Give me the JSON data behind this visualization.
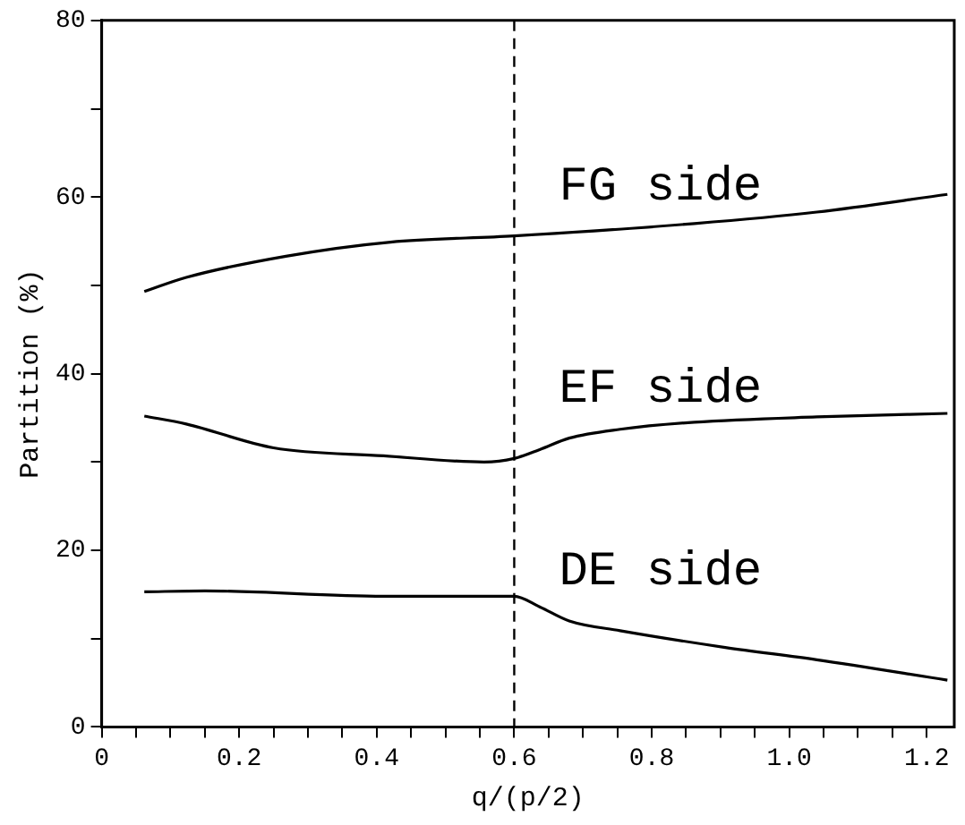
{
  "chart_data": {
    "type": "line",
    "xlabel": "q/(p/2)",
    "ylabel": "Partition (%)",
    "xlim": [
      0,
      1.24
    ],
    "ylim": [
      0,
      80
    ],
    "xticks": [
      0,
      {
        "value": 0.05,
        "label": null
      },
      {
        "value": 0.1,
        "label": null
      },
      {
        "value": 0.15,
        "label": null
      },
      0.2,
      {
        "value": 0.25,
        "label": null
      },
      {
        "value": 0.3,
        "label": null
      },
      {
        "value": 0.35,
        "label": null
      },
      0.4,
      {
        "value": 0.45,
        "label": null
      },
      {
        "value": 0.5,
        "label": null
      },
      {
        "value": 0.55,
        "label": null
      },
      0.6,
      {
        "value": 0.65,
        "label": null
      },
      {
        "value": 0.7,
        "label": null
      },
      {
        "value": 0.75,
        "label": null
      },
      0.8,
      {
        "value": 0.85,
        "label": null
      },
      {
        "value": 0.9,
        "label": null
      },
      {
        "value": 0.95,
        "label": null
      },
      {
        "value": 1,
        "label": "1.0"
      },
      {
        "value": 1.05,
        "label": null
      },
      {
        "value": 1.1,
        "label": null
      },
      {
        "value": 1.15,
        "label": null
      },
      1.2
    ],
    "yticks": [
      0,
      {
        "value": 10,
        "label": null
      },
      20,
      {
        "value": 30,
        "label": null
      },
      40,
      {
        "value": 50,
        "label": null
      },
      60,
      {
        "value": 70,
        "label": null
      },
      80
    ],
    "grid": false,
    "legend": false,
    "marker": "none",
    "line_style": "solid",
    "ref_lines": [
      {
        "axis": "x",
        "value": 0.6,
        "line_style": "dashed",
        "color": "#000000"
      }
    ],
    "series": [
      {
        "name": "FG side",
        "color": "#000000",
        "x": [
          0.062,
          0.123,
          0.268,
          0.42,
          0.6,
          0.862,
          1.04,
          1.23
        ],
        "values": [
          49.3,
          50.9,
          53.3,
          54.9,
          55.6,
          57.0,
          58.3,
          60.3
        ]
      },
      {
        "name": "EF side",
        "color": "#000000",
        "x": [
          0.062,
          0.123,
          0.25,
          0.41,
          0.556,
          0.6,
          0.637,
          0.68,
          0.754,
          0.862,
          1.04,
          1.23
        ],
        "values": [
          35.2,
          34.3,
          31.6,
          30.7,
          30.0,
          30.4,
          31.4,
          32.7,
          33.7,
          34.5,
          35.1,
          35.5
        ]
      },
      {
        "name": "DE side",
        "color": "#000000",
        "x": [
          0.062,
          0.15,
          0.41,
          0.6,
          0.637,
          0.68,
          0.754,
          0.907,
          1.04,
          1.23
        ],
        "values": [
          15.3,
          15.4,
          14.8,
          14.8,
          13.6,
          12.0,
          10.9,
          9.0,
          7.6,
          5.3
        ]
      }
    ]
  }
}
